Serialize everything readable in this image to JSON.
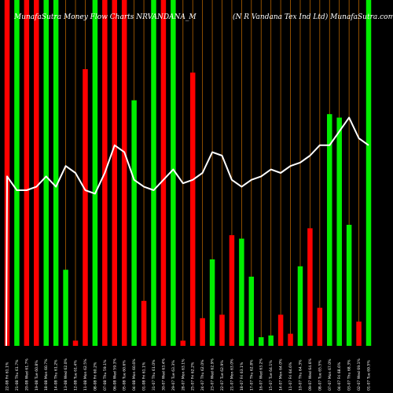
{
  "chart_data": {
    "type": "bar",
    "title": "MunafaSutra Money Flow Charts NRVANDANA_M",
    "subtitle": "(N R Vandana Tex Ind Ltd) MunafaSutra.com",
    "xlabel": "",
    "ylabel": "",
    "grid": true,
    "ylim": [
      0,
      100
    ],
    "categories": [
      "22-08 Fri 61.1%",
      "21-08 Thu 61.7%",
      "20-08 Wed 61.7%",
      "19-08 Tue 60.8%",
      "18-08 Mon 60.7%",
      "14-08 Thu 61.2%",
      "13-08 Wed 62.0%",
      "12-08 Tue 61.4%",
      "11-08 Mon 62.5%",
      "08-08 Fri 60.2%",
      "07-08 Thu 59.1%",
      "06-08 Wed 59.3%",
      "05-08 Tue 60.6%",
      "04-08 Mon 60.6%",
      "01-08 Fri 61.1%",
      "31-07 Thu 61.0%",
      "30-07 Wed 63.4%",
      "29-07 Tue 63.3%",
      "28-07 Mon 63.1%",
      "25-07 Fri 62.2%",
      "24-07 Thu 62.0%",
      "23-07 Wed 62.9%",
      "22-07 Tue 62.9%",
      "21-07 Mon 63.0%",
      "18-07 Fri 63.1%",
      "17-07 Thu 62.8%",
      "16-07 Wed 63.2%",
      "15-07 Tue 64.1%",
      "14-07 Mon 64.0%",
      "11-07 Fri 64.6%",
      "10-07 Thu 64.3%",
      "09-07 Wed 64.6%",
      "08-07 Tue 65.5%",
      "07-07 Mon 67.0%",
      "04-07 Fri 68.6%",
      "03-07 Thu 68.3%",
      "02-07 Wed 69.1%",
      "01-07 Tue 69.5%"
    ],
    "bar_colors": [
      "red",
      "green",
      "red",
      "red",
      "green",
      "green",
      "green",
      "red",
      "red",
      "green",
      "red",
      "red",
      "red",
      "green",
      "red",
      "green",
      "red",
      "green",
      "red",
      "red",
      "red",
      "green",
      "red",
      "red",
      "green",
      "green",
      "green",
      "green",
      "red",
      "red",
      "green",
      "red",
      "red",
      "green",
      "green",
      "green",
      "red",
      "green"
    ],
    "series": [
      {
        "values": [
          100,
          100,
          100,
          100,
          100,
          100,
          22,
          1.5,
          80,
          100,
          100,
          100,
          100,
          71,
          13,
          100,
          100,
          100,
          1.5,
          79,
          8,
          25,
          9,
          32,
          31,
          20,
          2.5,
          3,
          9,
          3.5,
          23,
          34,
          11,
          67,
          66,
          35,
          7,
          100
        ]
      }
    ],
    "line": {
      "values": [
        51,
        55,
        55,
        54,
        51,
        54,
        48,
        50,
        55,
        56,
        50,
        42,
        44,
        52,
        54,
        55,
        52,
        49,
        53,
        52,
        50,
        44,
        45,
        52,
        54,
        52,
        51,
        49,
        50,
        48,
        47,
        45,
        42,
        42,
        38,
        34,
        40,
        42
      ]
    },
    "legend": "none"
  },
  "colors": {
    "background": "#000000",
    "red": "#ff0000",
    "green": "#00ee00",
    "line": "#ffffff",
    "grid": "#b36200",
    "text": "#ffffff"
  }
}
